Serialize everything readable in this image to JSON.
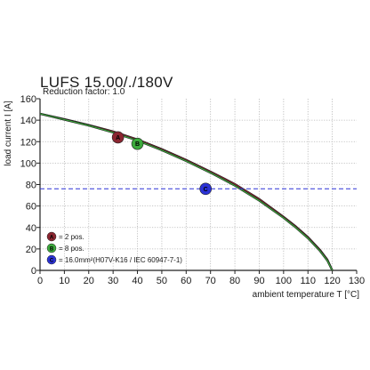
{
  "chart_data": {
    "type": "line",
    "title": "LUFS 15.00/./180V",
    "subtitle": "Reduction factor: 1.0",
    "xlabel": "ambient temperature T [°C]",
    "ylabel": "load current I [A]",
    "xlim": [
      0,
      130
    ],
    "ylim": [
      0,
      160
    ],
    "xticks": [
      "0",
      "10",
      "20",
      "30",
      "40",
      "50",
      "60",
      "70",
      "80",
      "90",
      "100",
      "110",
      "120",
      "130"
    ],
    "yticks": [
      "0",
      "20",
      "40",
      "60",
      "80",
      "100",
      "120",
      "140",
      "160"
    ],
    "grid": true,
    "series": [
      {
        "name": "2 pos.",
        "marker": "A",
        "color": "#8b2530",
        "x": [
          0,
          10,
          20,
          30,
          40,
          50,
          60,
          70,
          80,
          90,
          100,
          105,
          110,
          115,
          118,
          120
        ],
        "y": [
          146,
          141,
          135.5,
          129.5,
          122,
          113,
          103,
          92,
          80.5,
          66.5,
          50,
          41,
          31,
          19,
          10,
          0
        ]
      },
      {
        "name": "8 pos.",
        "marker": "B",
        "color": "#3caa3c",
        "x": [
          0,
          10,
          20,
          30,
          40,
          50,
          60,
          70,
          80,
          90,
          100,
          105,
          110,
          115,
          118,
          120
        ],
        "y": [
          146,
          140.5,
          135,
          128.5,
          121,
          112,
          102,
          91,
          79,
          65,
          49,
          40,
          30,
          18,
          9,
          0
        ]
      },
      {
        "name": "16.0mm²(H07V-K16 / IEC 60947-7-1)",
        "marker": "C",
        "color": "#2b32d6",
        "dashed": true,
        "x": [
          0,
          130
        ],
        "y": [
          76,
          76
        ]
      }
    ],
    "markers": [
      {
        "label": "A",
        "x": 32,
        "y": 124,
        "color": "#8b2530"
      },
      {
        "label": "B",
        "x": 40,
        "y": 118,
        "color": "#3caa3c"
      },
      {
        "label": "C",
        "x": 68,
        "y": 76,
        "color": "#2b32d6"
      }
    ],
    "legend": {
      "placement": "bottom-left",
      "entries": [
        {
          "marker": "A",
          "text": "= 2 pos.",
          "color": "#8b2530"
        },
        {
          "marker": "B",
          "text": "= 8 pos.",
          "color": "#3caa3c"
        },
        {
          "marker": "C",
          "text": "= 16.0mm²(H07V-K16 / IEC 60947-7-1)",
          "color": "#2b32d6"
        }
      ]
    }
  }
}
